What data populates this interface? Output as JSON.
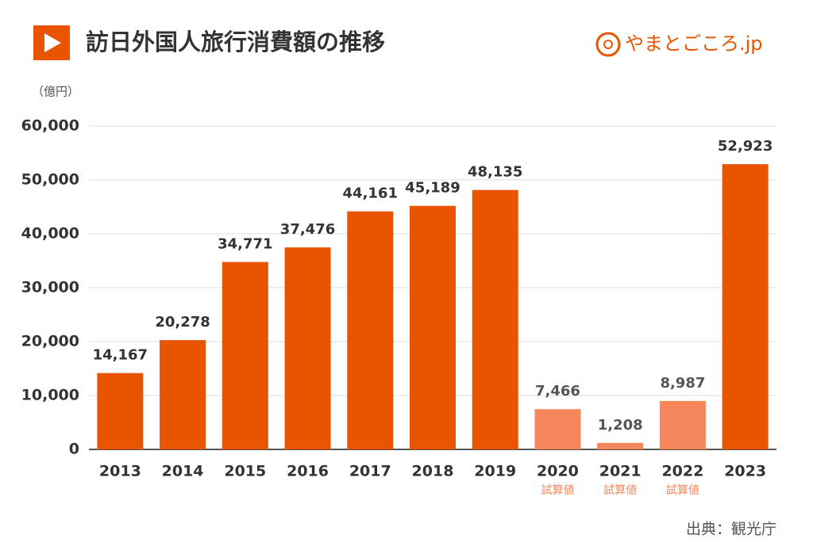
{
  "chart_data": {
    "type": "bar",
    "title": "訪日外国人旅行消費額の推移",
    "brand": "やまとごころ.jp",
    "y_axis_label": "（億円）",
    "source": "出典：観光庁",
    "categories": [
      "2013",
      "2014",
      "2015",
      "2016",
      "2017",
      "2018",
      "2019",
      "2020",
      "2021",
      "2022",
      "2023"
    ],
    "category_notes": [
      null,
      null,
      null,
      null,
      null,
      null,
      null,
      "試算値",
      "試算値",
      "試算値",
      null
    ],
    "values": [
      14167,
      20278,
      34771,
      37476,
      44161,
      45189,
      48135,
      7466,
      1208,
      8987,
      52923
    ],
    "value_labels": [
      "14,167",
      "20,278",
      "34,771",
      "37,476",
      "44,161",
      "45,189",
      "48,135",
      "7,466",
      "1,208",
      "8,987",
      "52,923"
    ],
    "colors": [
      "#e85400",
      "#e85400",
      "#e85400",
      "#e85400",
      "#e85400",
      "#e85400",
      "#e85400",
      "#f5875a",
      "#f5875a",
      "#f5875a",
      "#e85400"
    ],
    "ylim": [
      0,
      60000
    ],
    "yticks": [
      0,
      {
        "value": 10000,
        "label": "10,000"
      },
      {
        "value": 20000,
        "label": "20,000"
      },
      {
        "value": 30000,
        "label": "30,000"
      },
      {
        "value": 40000,
        "label": "40,000"
      },
      {
        "value": 50000,
        "label": "50,000"
      },
      {
        "value": 60000,
        "label": "60,000"
      }
    ],
    "grid": true
  }
}
